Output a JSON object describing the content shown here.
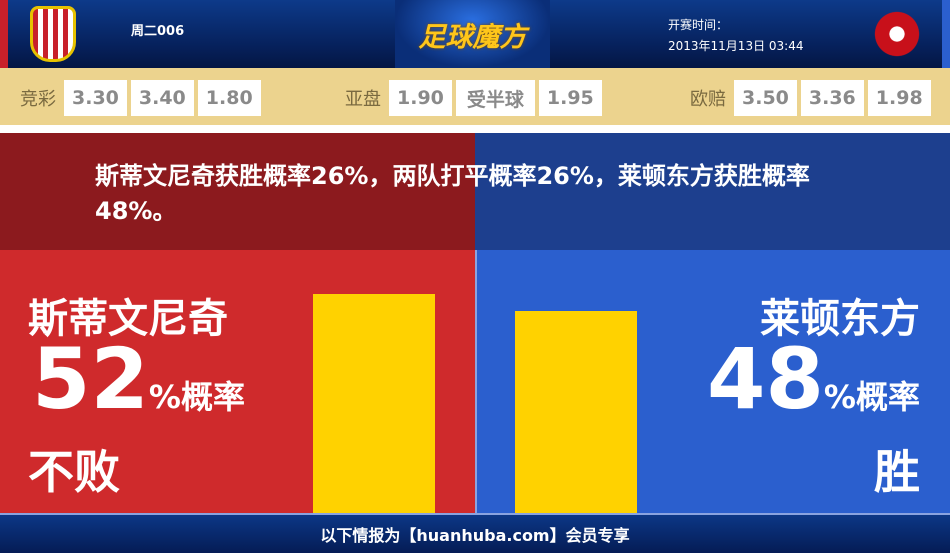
{
  "header": {
    "match_code": "周二006",
    "logo_text": "足球魔方",
    "kickoff_label": "开赛时间：",
    "kickoff_time": "2013年11月13日 03:44",
    "home_crest": "home-team-crest",
    "away_crest": "away-team-crest"
  },
  "odds": {
    "jingcai": {
      "label": "竞彩",
      "values": [
        "3.30",
        "3.40",
        "1.80"
      ]
    },
    "yapan": {
      "label": "亚盘",
      "values": [
        "1.90",
        "受半球",
        "1.95"
      ]
    },
    "oupei": {
      "label": "欧赔",
      "values": [
        "3.50",
        "3.36",
        "1.98"
      ]
    }
  },
  "summary": "斯蒂文尼奇获胜概率26%，两队打平概率26%，莱顿东方获胜概率48%。",
  "home": {
    "name": "斯蒂文尼奇",
    "percent": "52",
    "unit": "%概率",
    "result": "不败",
    "value": 52,
    "color": "#cf2a2c"
  },
  "away": {
    "name": "莱顿东方",
    "percent": "48",
    "unit": "%概率",
    "result": "胜",
    "value": 48,
    "color": "#2b5fce"
  },
  "bar_color": "#ffd200",
  "footer": "以下情报为【huanhuba.com】会员专享"
}
